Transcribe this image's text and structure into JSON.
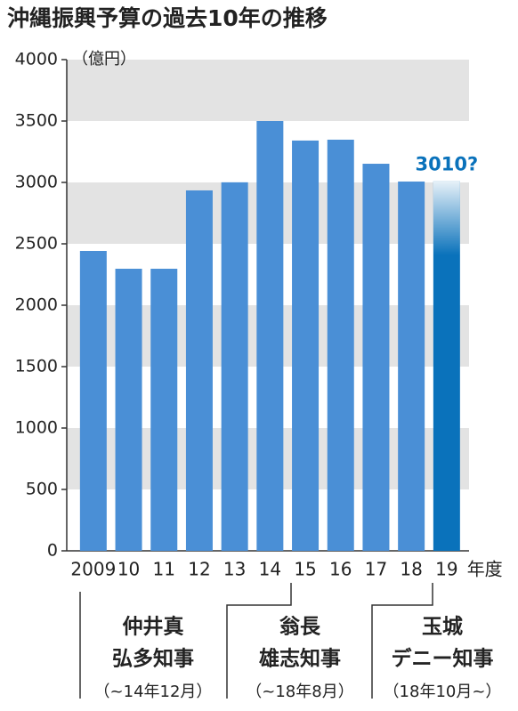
{
  "chart_data": {
    "type": "bar",
    "title": "沖縄振興予算の過去10年の推移",
    "y_unit": "（億円）",
    "x_suffix": "年度",
    "categories": [
      "2009",
      "10",
      "11",
      "12",
      "13",
      "14",
      "15",
      "16",
      "17",
      "18",
      "19"
    ],
    "values": [
      2442,
      2297,
      2297,
      2935,
      3001,
      3500,
      3341,
      3348,
      3152,
      3007,
      3010
    ],
    "value_labels": [
      null,
      null,
      null,
      null,
      null,
      null,
      null,
      null,
      null,
      null,
      "3010?"
    ],
    "color": "#4a8fd6",
    "highlight_color": "#0a72bb",
    "ylim": [
      0,
      4000
    ],
    "yticks": [
      0,
      500,
      1000,
      1500,
      2000,
      2500,
      3000,
      3500,
      4000
    ],
    "grid": true,
    "annotations": [
      {
        "lines": [
          "仲井真",
          "弘多知事"
        ],
        "term": "（~14年12月）"
      },
      {
        "lines": [
          "翁長",
          "雄志知事"
        ],
        "term": "（~18年8月）"
      },
      {
        "lines": [
          "玉城",
          "デニー知事"
        ],
        "term": "（18年10月~）"
      }
    ]
  }
}
